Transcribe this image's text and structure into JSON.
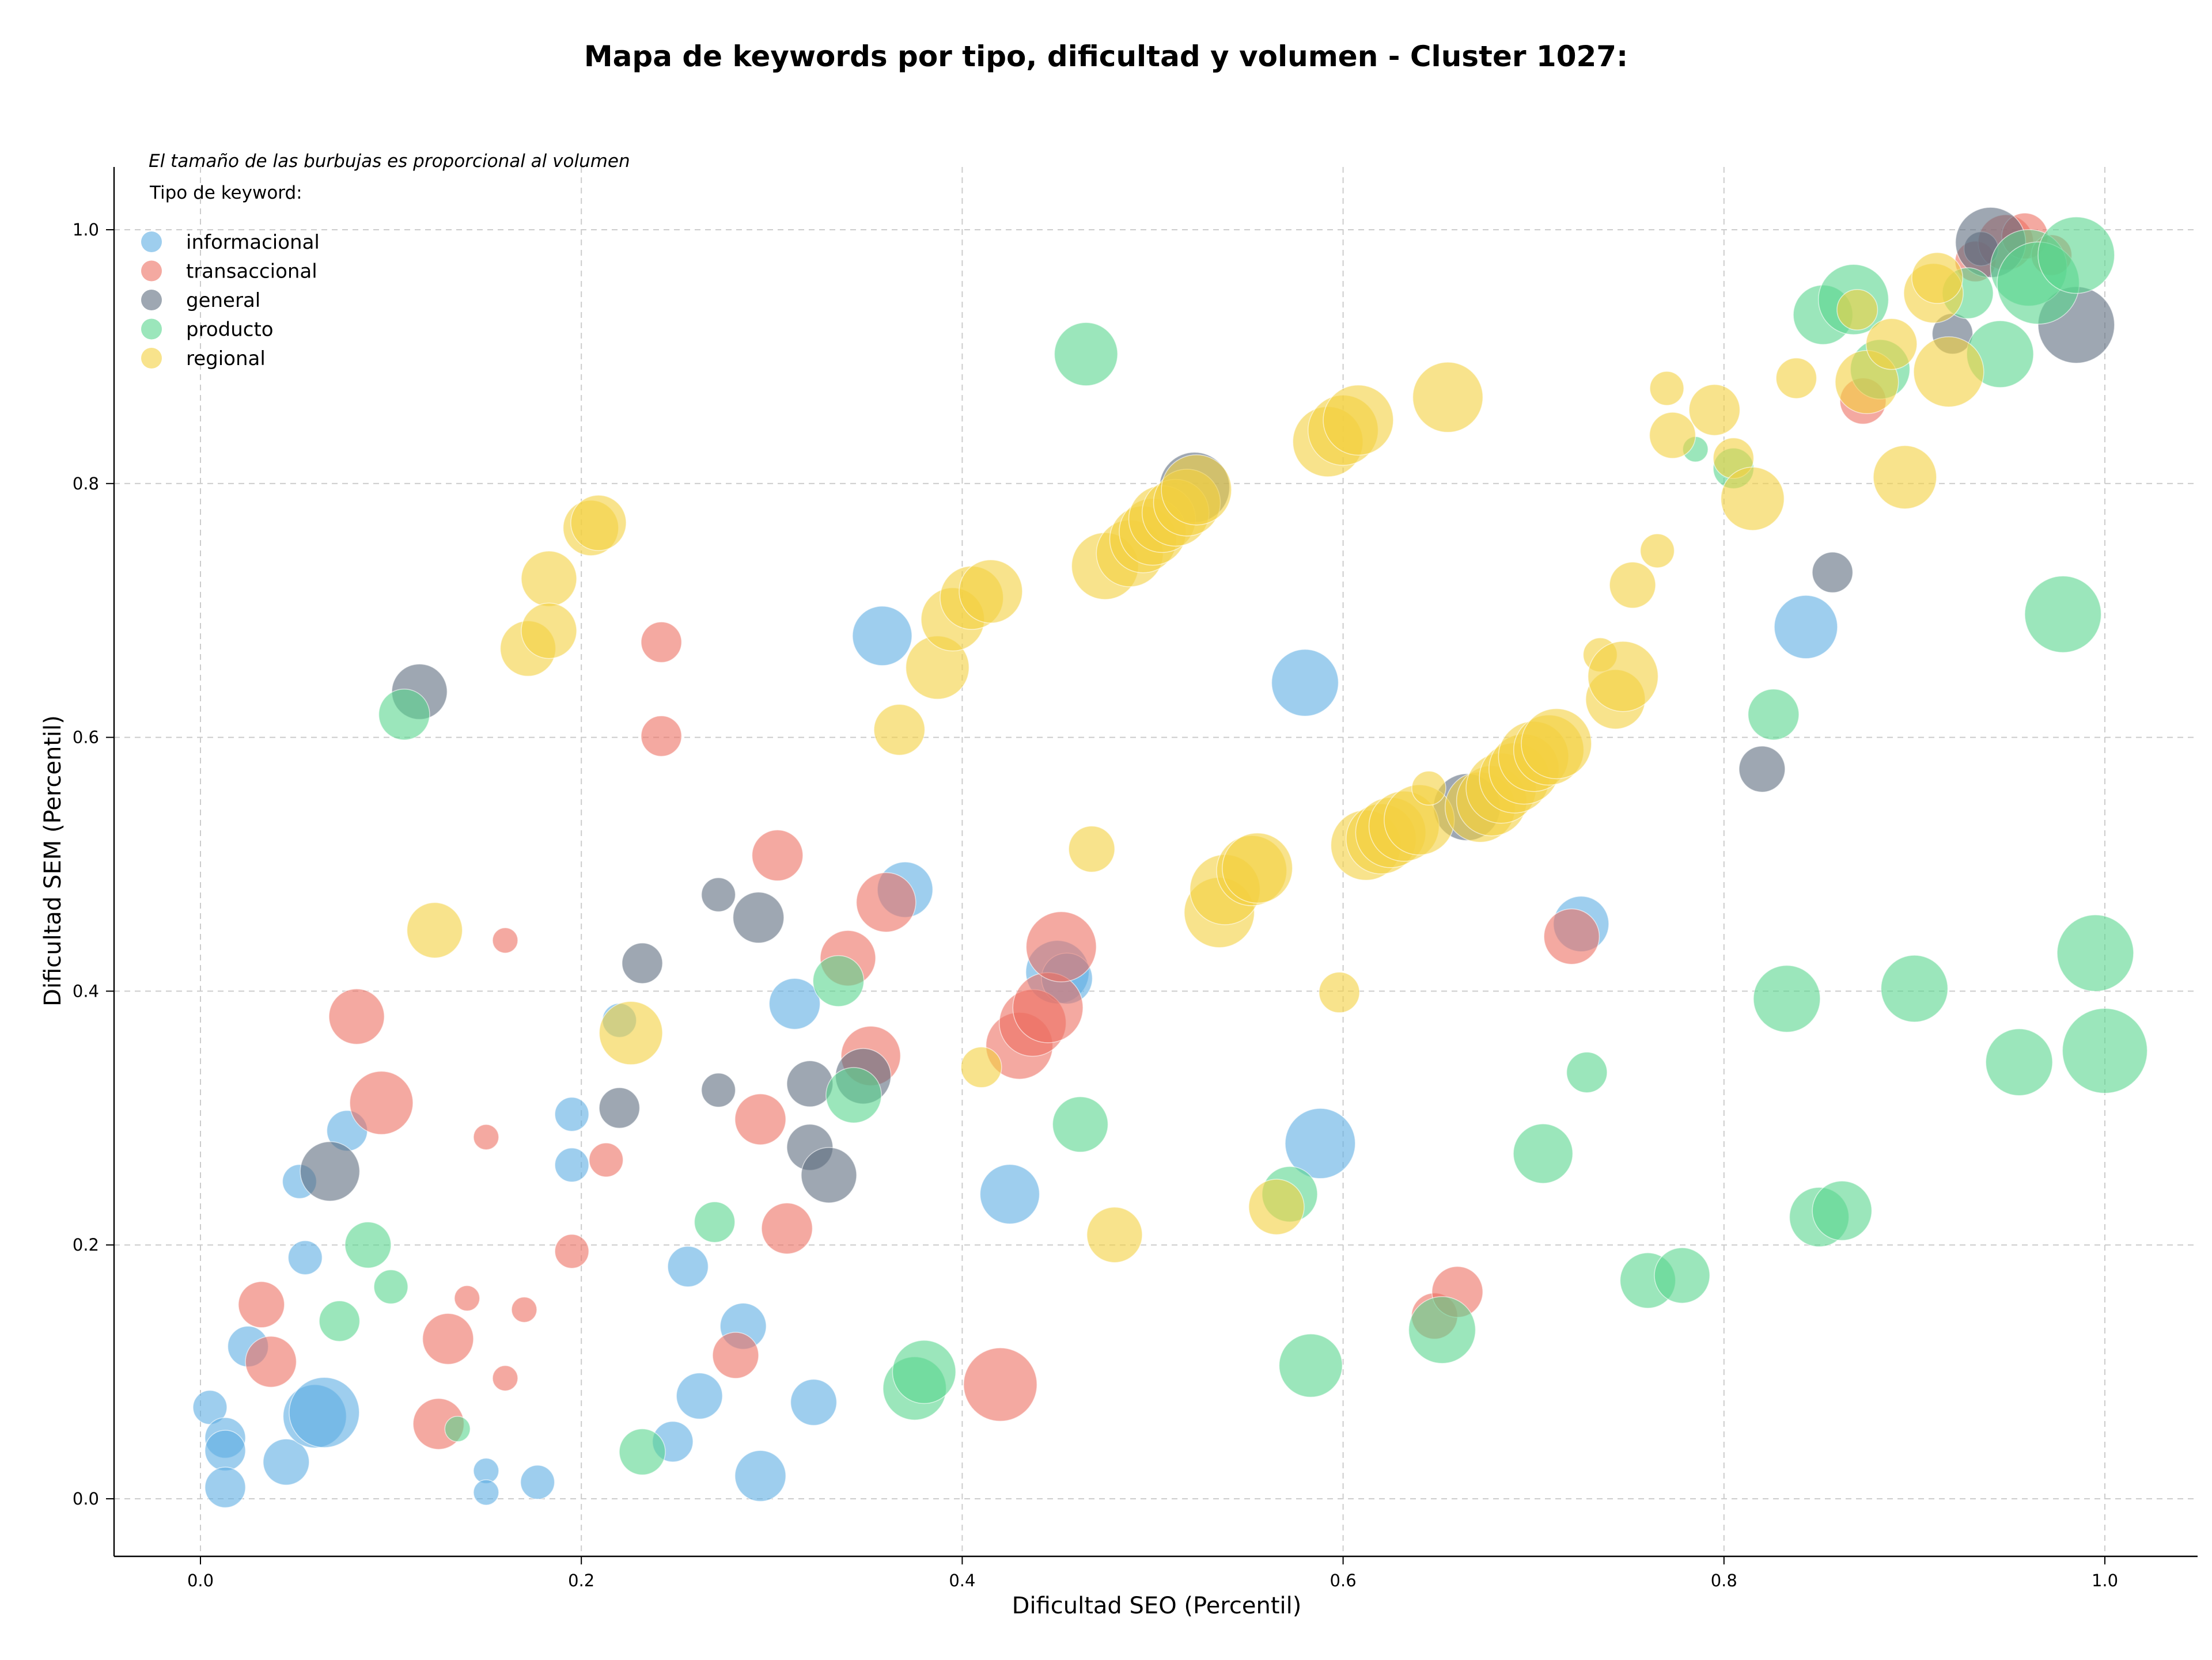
{
  "chart_data": {
    "type": "scatter",
    "title": "Mapa de keywords por tipo, dificultad y volumen - Cluster 1027:",
    "xlabel": "Dificultad SEO (Percentil)",
    "ylabel": "Dificultad SEM (Percentil)",
    "xlim": [
      -0.045,
      1.05
    ],
    "ylim": [
      -0.045,
      1.05
    ],
    "xticks": [
      "0.0",
      "0.2",
      "0.4",
      "0.6",
      "0.8",
      "1.0"
    ],
    "yticks": [
      "0.0",
      "0.2",
      "0.4",
      "0.6",
      "0.8",
      "1.0"
    ],
    "grid": true,
    "note": "El tamaño de las burbujas es proporcional al volumen",
    "legend_title": "Tipo de keyword:",
    "legend_position": "top-left",
    "series": [
      {
        "name": "informacional",
        "color": "#5DADE2",
        "points": [
          [
            0.005,
            0.072,
            2
          ],
          [
            0.013,
            0.048,
            3
          ],
          [
            0.013,
            0.038,
            3
          ],
          [
            0.013,
            0.009,
            3
          ],
          [
            0.025,
            0.12,
            3
          ],
          [
            0.045,
            0.029,
            4
          ],
          [
            0.055,
            0.19,
            2
          ],
          [
            0.052,
            0.25,
            2
          ],
          [
            0.06,
            0.065,
            8
          ],
          [
            0.065,
            0.068,
            10
          ],
          [
            0.077,
            0.29,
            3
          ],
          [
            0.15,
            0.022,
            1
          ],
          [
            0.15,
            0.005,
            1
          ],
          [
            0.177,
            0.013,
            2
          ],
          [
            0.195,
            0.303,
            2
          ],
          [
            0.195,
            0.263,
            2
          ],
          [
            0.22,
            0.377,
            2
          ],
          [
            0.248,
            0.045,
            3
          ],
          [
            0.256,
            0.183,
            3
          ],
          [
            0.262,
            0.081,
            4
          ],
          [
            0.285,
            0.136,
            4
          ],
          [
            0.294,
            0.018,
            5
          ],
          [
            0.312,
            0.39,
            5
          ],
          [
            0.322,
            0.076,
            4
          ],
          [
            0.358,
            0.68,
            7
          ],
          [
            0.37,
            0.48,
            6
          ],
          [
            0.425,
            0.24,
            7
          ],
          [
            0.45,
            0.415,
            8
          ],
          [
            0.455,
            0.41,
            5
          ],
          [
            0.58,
            0.643,
            9
          ],
          [
            0.588,
            0.28,
            10
          ],
          [
            0.725,
            0.453,
            6
          ],
          [
            0.843,
            0.687,
            8
          ]
        ]
      },
      {
        "name": "transaccional",
        "color": "#EC7063",
        "points": [
          [
            0.032,
            0.153,
            4
          ],
          [
            0.037,
            0.108,
            5
          ],
          [
            0.082,
            0.38,
            6
          ],
          [
            0.095,
            0.312,
            8
          ],
          [
            0.125,
            0.059,
            5
          ],
          [
            0.13,
            0.126,
            5
          ],
          [
            0.14,
            0.158,
            1
          ],
          [
            0.15,
            0.285,
            1
          ],
          [
            0.16,
            0.44,
            1
          ],
          [
            0.16,
            0.095,
            1
          ],
          [
            0.17,
            0.149,
            1
          ],
          [
            0.195,
            0.195,
            2
          ],
          [
            0.213,
            0.267,
            2
          ],
          [
            0.242,
            0.675,
            3
          ],
          [
            0.242,
            0.601,
            3
          ],
          [
            0.281,
            0.113,
            4
          ],
          [
            0.294,
            0.299,
            5
          ],
          [
            0.303,
            0.507,
            5
          ],
          [
            0.308,
            0.213,
            5
          ],
          [
            0.34,
            0.426,
            6
          ],
          [
            0.352,
            0.349,
            7
          ],
          [
            0.36,
            0.47,
            7
          ],
          [
            0.42,
            0.09,
            11
          ],
          [
            0.43,
            0.357,
            9
          ],
          [
            0.437,
            0.375,
            9
          ],
          [
            0.445,
            0.387,
            10
          ],
          [
            0.452,
            0.435,
            10
          ],
          [
            0.648,
            0.144,
            4
          ],
          [
            0.66,
            0.163,
            5
          ],
          [
            0.72,
            0.443,
            6
          ],
          [
            0.873,
            0.865,
            4
          ],
          [
            0.932,
            0.975,
            3
          ],
          [
            0.948,
            0.99,
            6
          ],
          [
            0.958,
            0.995,
            4
          ],
          [
            0.972,
            0.98,
            3
          ]
        ]
      },
      {
        "name": "general",
        "color": "#5D6D7E",
        "points": [
          [
            0.068,
            0.258,
            7
          ],
          [
            0.115,
            0.636,
            6
          ],
          [
            0.22,
            0.308,
            3
          ],
          [
            0.232,
            0.422,
            3
          ],
          [
            0.272,
            0.476,
            2
          ],
          [
            0.272,
            0.322,
            2
          ],
          [
            0.293,
            0.458,
            5
          ],
          [
            0.32,
            0.327,
            4
          ],
          [
            0.32,
            0.277,
            4
          ],
          [
            0.33,
            0.255,
            6
          ],
          [
            0.348,
            0.333,
            6
          ],
          [
            0.522,
            0.797,
            10
          ],
          [
            0.665,
            0.545,
            9
          ],
          [
            0.82,
            0.575,
            4
          ],
          [
            0.857,
            0.73,
            3
          ],
          [
            0.92,
            0.918,
            3
          ],
          [
            0.935,
            0.985,
            2
          ],
          [
            0.94,
            0.99,
            10
          ],
          [
            0.985,
            0.925,
            12
          ]
        ]
      },
      {
        "name": "producto",
        "color": "#58D68D",
        "points": [
          [
            0.073,
            0.14,
            3
          ],
          [
            0.088,
            0.2,
            4
          ],
          [
            0.1,
            0.167,
            2
          ],
          [
            0.107,
            0.618,
            5
          ],
          [
            0.135,
            0.055,
            1
          ],
          [
            0.232,
            0.037,
            4
          ],
          [
            0.27,
            0.218,
            3
          ],
          [
            0.335,
            0.408,
            5
          ],
          [
            0.343,
            0.318,
            6
          ],
          [
            0.375,
            0.087,
            8
          ],
          [
            0.38,
            0.1,
            8
          ],
          [
            0.462,
            0.295,
            6
          ],
          [
            0.465,
            0.902,
            8
          ],
          [
            0.572,
            0.24,
            6
          ],
          [
            0.583,
            0.105,
            8
          ],
          [
            0.652,
            0.133,
            9
          ],
          [
            0.705,
            0.272,
            7
          ],
          [
            0.728,
            0.336,
            3
          ],
          [
            0.76,
            0.172,
            6
          ],
          [
            0.778,
            0.176,
            6
          ],
          [
            0.785,
            0.827,
            1
          ],
          [
            0.805,
            0.812,
            3
          ],
          [
            0.826,
            0.618,
            5
          ],
          [
            0.833,
            0.394,
            9
          ],
          [
            0.85,
            0.222,
            7
          ],
          [
            0.852,
            0.933,
            7
          ],
          [
            0.862,
            0.227,
            7
          ],
          [
            0.868,
            0.945,
            10
          ],
          [
            0.882,
            0.89,
            7
          ],
          [
            0.9,
            0.402,
            9
          ],
          [
            0.928,
            0.95,
            5
          ],
          [
            0.945,
            0.902,
            9
          ],
          [
            0.955,
            0.344,
            9
          ],
          [
            0.96,
            0.97,
            12
          ],
          [
            0.965,
            0.958,
            14
          ],
          [
            0.978,
            0.697,
            12
          ],
          [
            0.985,
            0.98,
            12
          ],
          [
            0.995,
            0.43,
            12
          ],
          [
            1.0,
            0.353,
            15
          ]
        ]
      },
      {
        "name": "regional",
        "color": "#F4D03F",
        "points": [
          [
            0.123,
            0.448,
            6
          ],
          [
            0.172,
            0.67,
            6
          ],
          [
            0.183,
            0.725,
            6
          ],
          [
            0.183,
            0.684,
            6
          ],
          [
            0.205,
            0.765,
            6
          ],
          [
            0.209,
            0.769,
            6
          ],
          [
            0.226,
            0.367,
            8
          ],
          [
            0.367,
            0.606,
            5
          ],
          [
            0.387,
            0.655,
            8
          ],
          [
            0.395,
            0.693,
            8
          ],
          [
            0.405,
            0.71,
            8
          ],
          [
            0.415,
            0.715,
            8
          ],
          [
            0.41,
            0.34,
            3
          ],
          [
            0.468,
            0.512,
            4
          ],
          [
            0.475,
            0.735,
            9
          ],
          [
            0.48,
            0.208,
            6
          ],
          [
            0.488,
            0.745,
            9
          ],
          [
            0.495,
            0.756,
            9
          ],
          [
            0.5,
            0.762,
            9
          ],
          [
            0.505,
            0.772,
            9
          ],
          [
            0.512,
            0.777,
            9
          ],
          [
            0.518,
            0.785,
            9
          ],
          [
            0.523,
            0.795,
            10
          ],
          [
            0.535,
            0.462,
            10
          ],
          [
            0.538,
            0.48,
            10
          ],
          [
            0.552,
            0.495,
            10
          ],
          [
            0.555,
            0.497,
            10
          ],
          [
            0.565,
            0.23,
            6
          ],
          [
            0.592,
            0.833,
            10
          ],
          [
            0.598,
            0.399,
            3
          ],
          [
            0.6,
            0.842,
            10
          ],
          [
            0.608,
            0.85,
            10
          ],
          [
            0.612,
            0.515,
            10
          ],
          [
            0.62,
            0.52,
            10
          ],
          [
            0.625,
            0.525,
            10
          ],
          [
            0.632,
            0.53,
            10
          ],
          [
            0.64,
            0.535,
            10
          ],
          [
            0.645,
            0.56,
            2
          ],
          [
            0.655,
            0.868,
            10
          ],
          [
            0.672,
            0.545,
            10
          ],
          [
            0.678,
            0.55,
            10
          ],
          [
            0.683,
            0.56,
            10
          ],
          [
            0.69,
            0.568,
            10
          ],
          [
            0.695,
            0.575,
            10
          ],
          [
            0.7,
            0.585,
            10
          ],
          [
            0.708,
            0.59,
            10
          ],
          [
            0.712,
            0.595,
            10
          ],
          [
            0.735,
            0.665,
            2
          ],
          [
            0.743,
            0.63,
            7
          ],
          [
            0.747,
            0.648,
            10
          ],
          [
            0.752,
            0.72,
            4
          ],
          [
            0.765,
            0.747,
            2
          ],
          [
            0.77,
            0.875,
            2
          ],
          [
            0.773,
            0.838,
            4
          ],
          [
            0.795,
            0.858,
            5
          ],
          [
            0.805,
            0.82,
            3
          ],
          [
            0.815,
            0.788,
            8
          ],
          [
            0.838,
            0.883,
            3
          ],
          [
            0.87,
            0.937,
            3
          ],
          [
            0.875,
            0.88,
            8
          ],
          [
            0.888,
            0.91,
            5
          ],
          [
            0.895,
            0.805,
            8
          ],
          [
            0.91,
            0.95,
            7
          ],
          [
            0.912,
            0.962,
            5
          ],
          [
            0.918,
            0.888,
            10
          ]
        ]
      }
    ]
  }
}
